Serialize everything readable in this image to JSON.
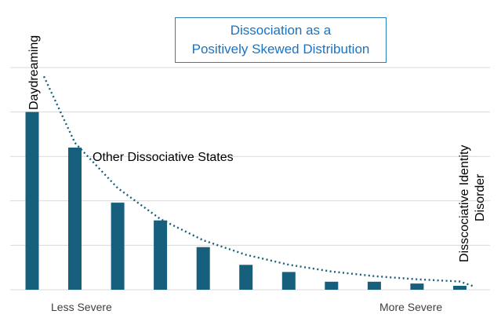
{
  "chart_data": {
    "type": "bar",
    "title_lines": [
      "Dissociation  as a",
      "Positively Skewed Distribution"
    ],
    "values": [
      100,
      80,
      49,
      39,
      24,
      14,
      10,
      4.5,
      4.5,
      3.5,
      2.2
    ],
    "ylim": [
      0,
      125
    ],
    "grid": true,
    "trendline": "dotted exponential",
    "bar_color": "#17607d",
    "trend_color": "#17607d",
    "grid_color": "#d9d9d9",
    "title_color": "#1a73c2",
    "annotations": {
      "daydreaming": "Daydreaming",
      "other_states": "Other Dissociative States",
      "did_line1": "Disscociative Identity",
      "did_line2": "Disorder"
    },
    "axis_labels": {
      "left": "Less Severe",
      "right": "More Severe"
    }
  }
}
